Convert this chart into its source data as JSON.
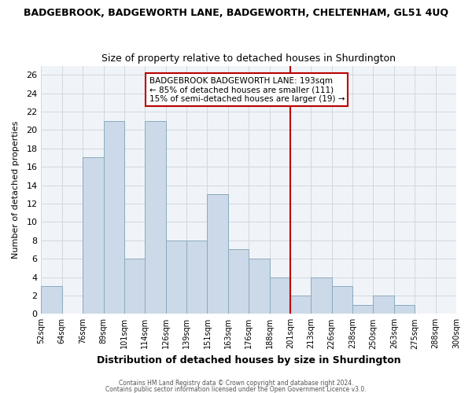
{
  "title": "BADGEBROOK, BADGEWORTH LANE, BADGEWORTH, CHELTENHAM, GL51 4UQ",
  "subtitle": "Size of property relative to detached houses in Shurdington",
  "xlabel": "Distribution of detached houses by size in Shurdington",
  "ylabel": "Number of detached properties",
  "bar_color": "#ccd9e8",
  "bar_edge_color": "#8aaabf",
  "bin_labels": [
    "52sqm",
    "64sqm",
    "76sqm",
    "89sqm",
    "101sqm",
    "114sqm",
    "126sqm",
    "139sqm",
    "151sqm",
    "163sqm",
    "176sqm",
    "188sqm",
    "201sqm",
    "213sqm",
    "226sqm",
    "238sqm",
    "250sqm",
    "263sqm",
    "275sqm",
    "288sqm",
    "300sqm"
  ],
  "bar_heights": [
    3,
    0,
    17,
    21,
    6,
    21,
    8,
    8,
    13,
    7,
    6,
    4,
    2,
    4,
    3,
    1,
    2,
    1,
    0,
    0
  ],
  "vline_x": 12,
  "vline_color": "#bb0000",
  "ylim": [
    0,
    27
  ],
  "yticks": [
    0,
    2,
    4,
    6,
    8,
    10,
    12,
    14,
    16,
    18,
    20,
    22,
    24,
    26
  ],
  "annotation_title": "BADGEBROOK BADGEWORTH LANE: 193sqm",
  "annotation_line1": "← 85% of detached houses are smaller (111)",
  "annotation_line2": "15% of semi-detached houses are larger (19) →",
  "footer1": "Contains HM Land Registry data © Crown copyright and database right 2024.",
  "footer2": "Contains public sector information licensed under the Open Government Licence v3.0.",
  "grid_color": "#d0d8e0",
  "background_color": "#f0f4f8"
}
